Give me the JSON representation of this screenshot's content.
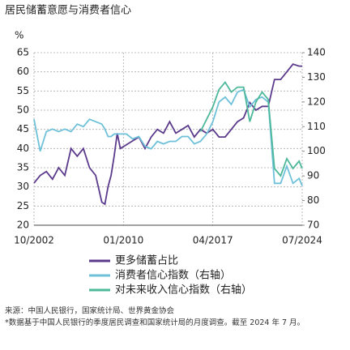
{
  "chart_data": {
    "type": "line",
    "title": "居民储蓄意愿与消费者信心",
    "y_label": "%",
    "x": [
      "2002-10",
      "2003-04",
      "2003-10",
      "2004-04",
      "2004-10",
      "2005-04",
      "2005-10",
      "2006-04",
      "2006-10",
      "2007-04",
      "2007-10",
      "2008-04",
      "2008-07",
      "2008-10",
      "2009-01",
      "2009-04",
      "2009-07",
      "2009-10",
      "2010-04",
      "2010-10",
      "2011-04",
      "2011-10",
      "2012-04",
      "2012-10",
      "2013-04",
      "2013-10",
      "2014-04",
      "2014-10",
      "2015-04",
      "2015-10",
      "2016-04",
      "2016-10",
      "2017-04",
      "2017-10",
      "2018-04",
      "2018-10",
      "2019-04",
      "2019-10",
      "2020-04",
      "2020-10",
      "2021-04",
      "2021-10",
      "2022-04",
      "2022-10",
      "2023-04",
      "2023-10",
      "2024-04",
      "2024-07"
    ],
    "series": [
      {
        "name": "更多储蓄占比",
        "color": "#5b3a8c",
        "axis": "y",
        "values": [
          31,
          33,
          34,
          32,
          35,
          33,
          40,
          38,
          40,
          35,
          33,
          26,
          25.5,
          30,
          33,
          38,
          44,
          40,
          41,
          42,
          43,
          40,
          43,
          45,
          44,
          47,
          44,
          45,
          46,
          43,
          45,
          44,
          45,
          43,
          43,
          45,
          47,
          48,
          52,
          50,
          51,
          51,
          58,
          58,
          60,
          62,
          61.5,
          61.5
        ]
      },
      {
        "name": "消费者信心指数（右轴）",
        "color": "#6ec1d9",
        "axis": "y2",
        "values": [
          113,
          100,
          108,
          109,
          108,
          109,
          108,
          111,
          110,
          113,
          112,
          111,
          109,
          106,
          106,
          107,
          107,
          107,
          107,
          105,
          106,
          102,
          101,
          104,
          103,
          104,
          104,
          106,
          106,
          103,
          104,
          107,
          112,
          120,
          122,
          119,
          124,
          125,
          118,
          121,
          122,
          120,
          87,
          87,
          94,
          87,
          89,
          86
        ]
      },
      {
        "name": "对未来收入信心指数（右轴）",
        "color": "#4db89a",
        "axis": "y2",
        "values": [
          null,
          null,
          null,
          null,
          null,
          null,
          null,
          null,
          null,
          null,
          null,
          null,
          null,
          null,
          null,
          null,
          null,
          null,
          null,
          null,
          null,
          null,
          null,
          null,
          null,
          null,
          null,
          null,
          null,
          null,
          108,
          113,
          118,
          125,
          128,
          124,
          126,
          126,
          112,
          120,
          124,
          121,
          93,
          90,
          97,
          93,
          96,
          93
        ]
      }
    ],
    "xlim": [
      "2002-10",
      "2024-07"
    ],
    "xticks": [
      {
        "value": "2002-10",
        "label": "10/2002"
      },
      {
        "value": "2010-01",
        "label": "01/2010"
      },
      {
        "value": "2017-04",
        "label": "04/2017"
      },
      {
        "value": "2024-07",
        "label": "07/2024"
      }
    ],
    "ylim": [
      20,
      65
    ],
    "yticks": [
      20,
      25,
      30,
      35,
      40,
      45,
      50,
      55,
      60,
      65
    ],
    "y2lim": [
      70,
      140
    ],
    "y2ticks": [
      70,
      80,
      90,
      100,
      110,
      120,
      130,
      140
    ],
    "grid": true,
    "source": "来源：中国人民银行，国家统计局、世界黄金协会",
    "note": "*数据基于中国人民银行的季度居民调查和国家统计局的月度调查。截至 2024 年 7 月。"
  }
}
